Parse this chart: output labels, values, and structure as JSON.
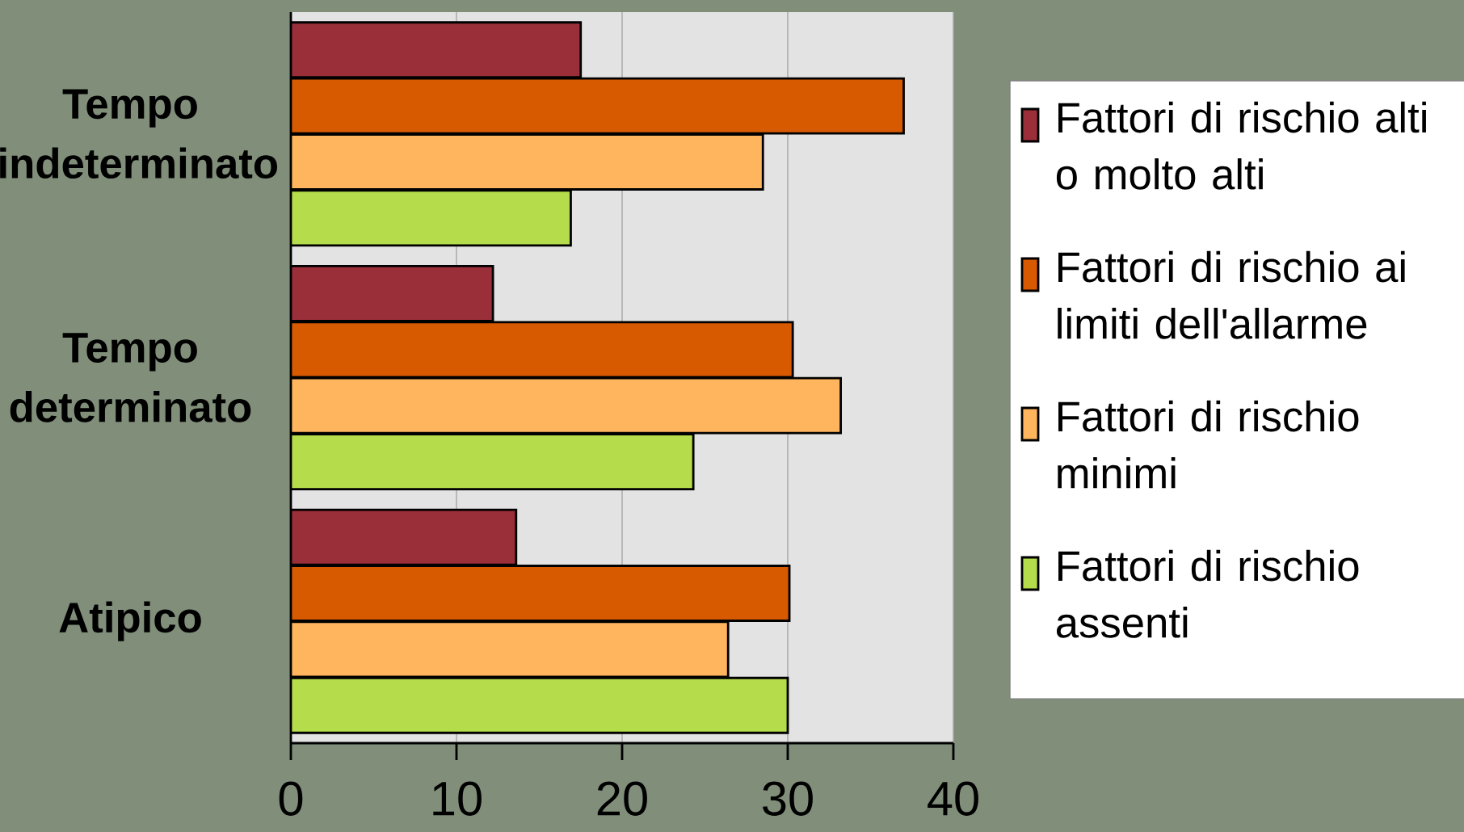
{
  "chart_data": {
    "type": "bar",
    "orientation": "horizontal",
    "categories": [
      "Tempo indeterminato",
      "Tempo determinato",
      "Atipico"
    ],
    "series": [
      {
        "name": "Fattori di rischio alti o molto alti",
        "color": "#9a2f3a",
        "values": [
          17.5,
          12.2,
          13.6
        ]
      },
      {
        "name": "Fattori di rischio ai limiti dell'allarme",
        "color": "#d85a00",
        "values": [
          37.0,
          30.3,
          30.1
        ]
      },
      {
        "name": "Fattori di rischio minimi",
        "color": "#ffb55e",
        "values": [
          28.5,
          33.2,
          26.4
        ]
      },
      {
        "name": "Fattori di rischio assenti",
        "color": "#b5dc4a",
        "values": [
          16.9,
          24.3,
          30.0
        ]
      }
    ],
    "xlim": [
      0,
      40
    ],
    "xticks": [
      0,
      10,
      20,
      30,
      40
    ],
    "grid": "x",
    "legend": "right"
  }
}
